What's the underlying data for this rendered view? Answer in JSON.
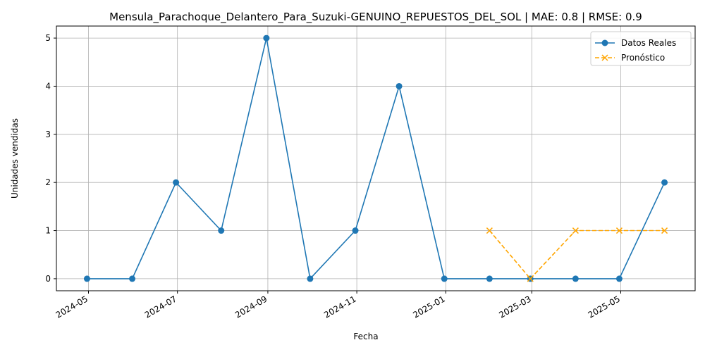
{
  "chart_data": {
    "type": "line",
    "title": "Mensula_Parachoque_Delantero_Para_Suzuki-GENUINO_REPUESTOS_DEL_SOL | MAE: 0.8 | RMSE: 0.9",
    "xlabel": "Fecha",
    "ylabel": "Unidades vendidas",
    "xlim": [
      "2024-04-09",
      "2025-06-21"
    ],
    "ylim": [
      -0.25,
      5.25
    ],
    "grid": true,
    "legend_position": "top-right",
    "x_ticks": [
      "2024-05",
      "2024-07",
      "2024-09",
      "2024-11",
      "2025-01",
      "2025-03",
      "2025-05"
    ],
    "y_ticks": [
      0,
      1,
      2,
      3,
      4,
      5
    ],
    "series": [
      {
        "name": "Datos Reales",
        "color": "#1f77b4",
        "style": "solid",
        "marker": "circle",
        "points": [
          {
            "x": "2024-04-30",
            "y": 0
          },
          {
            "x": "2024-05-31",
            "y": 0
          },
          {
            "x": "2024-06-30",
            "y": 2
          },
          {
            "x": "2024-07-31",
            "y": 1
          },
          {
            "x": "2024-08-31",
            "y": 5
          },
          {
            "x": "2024-09-30",
            "y": 0
          },
          {
            "x": "2024-10-31",
            "y": 1
          },
          {
            "x": "2024-11-30",
            "y": 4
          },
          {
            "x": "2024-12-31",
            "y": 0
          },
          {
            "x": "2025-01-31",
            "y": 0
          },
          {
            "x": "2025-02-28",
            "y": 0
          },
          {
            "x": "2025-03-31",
            "y": 0
          },
          {
            "x": "2025-04-30",
            "y": 0
          },
          {
            "x": "2025-05-31",
            "y": 2
          }
        ]
      },
      {
        "name": "Pronóstico",
        "color": "#ffa500",
        "style": "dashed",
        "marker": "x",
        "points": [
          {
            "x": "2025-01-31",
            "y": 1
          },
          {
            "x": "2025-02-28",
            "y": 0
          },
          {
            "x": "2025-03-31",
            "y": 1
          },
          {
            "x": "2025-04-30",
            "y": 1
          },
          {
            "x": "2025-05-31",
            "y": 1
          }
        ]
      }
    ]
  }
}
